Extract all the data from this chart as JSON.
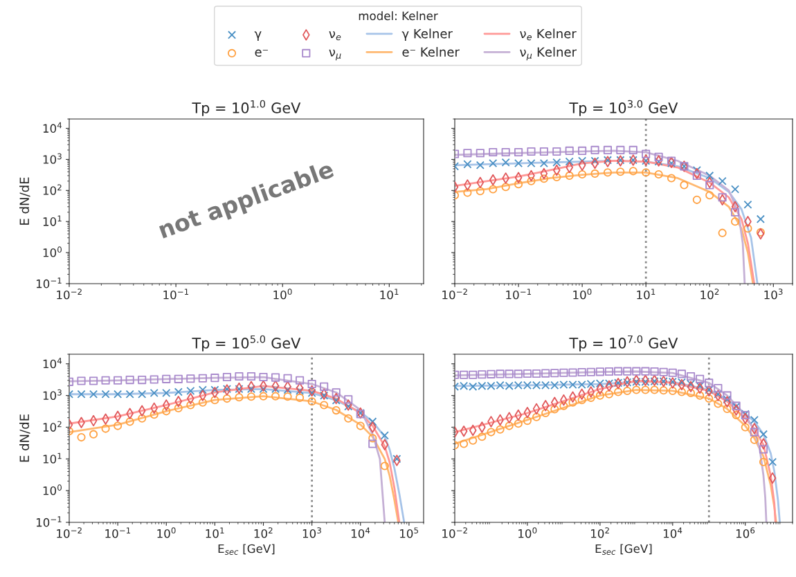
{
  "chart_data": [
    {
      "type": "scatter",
      "title": "Tp = 10$^{1.0}$ GeV",
      "ylabel": "E dN/dE",
      "log": "xy",
      "xlim": [
        0.01,
        21
      ],
      "ylim": [
        0.1,
        20000
      ],
      "xticks": [
        {
          "value": 0.01,
          "label": "10$^{−2}$"
        },
        {
          "value": 0.1,
          "label": "10$^{−1}$"
        },
        {
          "value": 1,
          "label": "10$^{0}$"
        },
        {
          "value": 10,
          "label": "10$^{1}$"
        }
      ],
      "yticks": [
        {
          "value": 0.1,
          "label": "10$^{−1}$"
        },
        {
          "value": 1,
          "label": "10$^{0}$"
        },
        {
          "value": 10,
          "label": "10$^{1}$"
        },
        {
          "value": 100,
          "label": "10$^{2}$"
        },
        {
          "value": 1000,
          "label": "10$^{3}$"
        },
        {
          "value": 10000,
          "label": "10$^{4}$"
        }
      ],
      "annotations": [
        "not applicable"
      ]
    },
    {
      "type": "scatter",
      "title": "Tp = 10$^{3.0}$ GeV",
      "log": "xy",
      "xlim": [
        0.01,
        2000
      ],
      "ylim": [
        0.1,
        20000
      ],
      "tick_labels": "x",
      "legend": "top",
      "legend_title": "model: Kelner",
      "xticks": [
        {
          "value": 0.01,
          "label": "10$^{−2}$"
        },
        {
          "value": 0.1,
          "label": "10$^{−1}$"
        },
        {
          "value": 1,
          "label": "10$^{0}$"
        },
        {
          "value": 10,
          "label": "10$^{1}$"
        },
        {
          "value": 100,
          "label": "10$^{2}$"
        },
        {
          "value": 1000,
          "label": "10$^{3}$"
        }
      ],
      "yticks": [
        {
          "value": 0.1,
          "label": null
        },
        {
          "value": 1,
          "label": null
        },
        {
          "value": 10,
          "label": null
        },
        {
          "value": 100,
          "label": null
        },
        {
          "value": 1000,
          "label": null
        },
        {
          "value": 10000,
          "label": null
        }
      ],
      "ref_lines": [
        {
          "axis": "x",
          "value": 10,
          "color": "#888888",
          "line_style": "dotted"
        }
      ],
      "x": [
        0.01,
        0.01585,
        0.02512,
        0.03981,
        0.0631,
        0.1,
        0.1585,
        0.2512,
        0.3981,
        0.631,
        1,
        1.585,
        2.512,
        3.981,
        6.31,
        10,
        15.85,
        25.12,
        39.81,
        63.1,
        100,
        158.5,
        251.2,
        398.1,
        631
      ],
      "series": [
        {
          "name": "γ",
          "marker": "cross",
          "color": "#4a90c4",
          "values": [
            600,
            700,
            650,
            750,
            800,
            750,
            750,
            750,
            800,
            850,
            900,
            900,
            950,
            950,
            950,
            900,
            850,
            750,
            600,
            450,
            300,
            200,
            110,
            35,
            12
          ]
        },
        {
          "name": "e⁻",
          "marker": "circle",
          "color": "#ffa040",
          "values": [
            70,
            85,
            95,
            110,
            130,
            160,
            200,
            240,
            270,
            300,
            330,
            350,
            380,
            400,
            420,
            380,
            330,
            250,
            150,
            50,
            70,
            4.3,
            10,
            6,
            4.5
          ]
        },
        {
          "name": "ν$_{e}$",
          "marker": "diamond",
          "color": "#e0575a",
          "values": [
            130,
            150,
            180,
            220,
            250,
            260,
            300,
            350,
            450,
            550,
            650,
            750,
            850,
            900,
            950,
            950,
            900,
            800,
            600,
            350,
            180,
            50,
            30,
            10,
            4
          ]
        },
        {
          "name": "ν$_{μ}$",
          "marker": "square",
          "color": "#a889cc",
          "values": [
            1500,
            1600,
            1600,
            1700,
            1700,
            1700,
            1800,
            1800,
            1800,
            1900,
            1900,
            2000,
            2000,
            2000,
            2000,
            1500,
            1200,
            900,
            600,
            300,
            150,
            60,
            20,
            null,
            null
          ]
        },
        {
          "name": "γ Kelner",
          "type": "line",
          "color": "#a6c3e8",
          "x": [
            0.01,
            0.0316,
            0.1,
            0.316,
            1,
            3.16,
            10,
            31.6,
            100,
            200,
            316,
            447,
            562
          ],
          "values": [
            650,
            700,
            750,
            800,
            850,
            900,
            850,
            600,
            250,
            90,
            25,
            3,
            0.1
          ]
        },
        {
          "name": "e⁻ Kelner",
          "type": "line",
          "color": "#ffb870",
          "x": [
            0.01,
            0.0316,
            0.1,
            0.316,
            1,
            3.16,
            10,
            31.6,
            100,
            200,
            316,
            398,
            479
          ],
          "values": [
            90,
            110,
            170,
            250,
            320,
            380,
            380,
            250,
            90,
            30,
            6,
            1,
            0.1
          ]
        },
        {
          "name": "ν$_{e}$ Kelner",
          "type": "line",
          "color": "#ff9896",
          "x": [
            0.01,
            0.0316,
            0.1,
            0.316,
            1,
            3.16,
            10,
            31.6,
            100,
            200,
            316,
            398,
            501
          ],
          "values": [
            140,
            200,
            280,
            450,
            750,
            900,
            850,
            550,
            180,
            60,
            12,
            2,
            0.1
          ]
        },
        {
          "name": "ν$_{μ}$ Kelner",
          "type": "line",
          "color": "#c5b0d5",
          "x": [
            0.01,
            0.0316,
            0.1,
            0.316,
            1,
            3.16,
            10,
            31.6,
            100,
            200,
            282,
            331,
            355
          ],
          "values": [
            1400,
            1500,
            1600,
            1700,
            1800,
            1900,
            1700,
            900,
            300,
            100,
            20,
            2,
            0.1
          ]
        }
      ]
    },
    {
      "type": "scatter",
      "title": "Tp = 10$^{5.0}$ GeV",
      "xlabel": "E$_{sec}$ [GeV]",
      "ylabel": "E dN/dE",
      "log": "xy",
      "xlim": [
        0.01,
        200000
      ],
      "ylim": [
        0.1,
        20000
      ],
      "xticks": [
        {
          "value": 0.01,
          "label": "10$^{−2}$"
        },
        {
          "value": 0.1,
          "label": "10$^{−1}$"
        },
        {
          "value": 1,
          "label": "10$^{0}$"
        },
        {
          "value": 10,
          "label": "10$^{1}$"
        },
        {
          "value": 100,
          "label": "10$^{2}$"
        },
        {
          "value": 1000,
          "label": "10$^{3}$"
        },
        {
          "value": 10000,
          "label": "10$^{4}$"
        },
        {
          "value": 100000,
          "label": "10$^{5}$"
        }
      ],
      "yticks": [
        {
          "value": 0.1,
          "label": "10$^{−1}$"
        },
        {
          "value": 1,
          "label": "10$^{0}$"
        },
        {
          "value": 10,
          "label": "10$^{1}$"
        },
        {
          "value": 100,
          "label": "10$^{2}$"
        },
        {
          "value": 1000,
          "label": "10$^{3}$"
        },
        {
          "value": 10000,
          "label": "10$^{4}$"
        }
      ],
      "ref_lines": [
        {
          "axis": "x",
          "value": 1000,
          "color": "#888888",
          "line_style": "dotted"
        }
      ],
      "x": [
        0.01,
        0.01778,
        0.03162,
        0.05623,
        0.1,
        0.1778,
        0.3162,
        0.5623,
        1,
        1.778,
        3.162,
        5.623,
        10,
        17.78,
        31.62,
        56.23,
        100,
        177.8,
        316.2,
        562.3,
        1000,
        1778,
        3162,
        5623,
        10000,
        17780,
        31620,
        56230
      ],
      "series": [
        {
          "marker": "cross",
          "color": "#4a90c4",
          "values": [
            1100,
            1100,
            1100,
            1100,
            1100,
            1100,
            1100,
            1200,
            1200,
            1300,
            1400,
            1500,
            1500,
            1600,
            1600,
            1600,
            1600,
            1600,
            1500,
            1400,
            1200,
            1000,
            700,
            450,
            280,
            150,
            55,
            10
          ]
        },
        {
          "marker": "circle",
          "color": "#ffa040",
          "values": [
            75,
            48,
            60,
            90,
            110,
            150,
            190,
            250,
            320,
            400,
            500,
            600,
            720,
            800,
            880,
            920,
            950,
            950,
            920,
            850,
            650,
            500,
            340,
            190,
            110,
            45,
            6,
            null
          ]
        },
        {
          "marker": "diamond",
          "color": "#e0575a",
          "values": [
            120,
            140,
            160,
            180,
            220,
            270,
            330,
            400,
            500,
            650,
            800,
            1000,
            1250,
            1500,
            1700,
            1900,
            2000,
            2000,
            1900,
            1700,
            1400,
            1100,
            800,
            500,
            280,
            100,
            28,
            9
          ]
        },
        {
          "marker": "square",
          "color": "#a889cc",
          "values": [
            2700,
            2900,
            2900,
            3000,
            3000,
            3100,
            3100,
            3200,
            3300,
            3300,
            3400,
            3500,
            3600,
            3800,
            4000,
            4000,
            3800,
            3700,
            3500,
            3000,
            2300,
            1900,
            1250,
            750,
            260,
            30,
            null,
            null
          ]
        },
        {
          "type": "line",
          "color": "#a6c3e8",
          "x": [
            0.01,
            0.1,
            1,
            10,
            100,
            1000,
            3162,
            10000,
            17780,
            31620,
            39810,
            50120,
            63100,
            79430
          ],
          "values": [
            1100,
            1100,
            1200,
            1500,
            1600,
            1200,
            700,
            300,
            150,
            50,
            20,
            5,
            0.8,
            0.1
          ]
        },
        {
          "type": "line",
          "color": "#ffb870",
          "x": [
            0.01,
            0.1,
            1,
            10,
            100,
            1000,
            3162,
            10000,
            17780,
            31620,
            39810,
            50120,
            60260
          ],
          "values": [
            70,
            120,
            320,
            720,
            950,
            650,
            350,
            120,
            50,
            10,
            3,
            0.5,
            0.1
          ]
        },
        {
          "type": "line",
          "color": "#ff9896",
          "x": [
            0.01,
            0.1,
            1,
            10,
            100,
            1000,
            3162,
            10000,
            17780,
            31620,
            39810,
            50120,
            63100
          ],
          "values": [
            130,
            220,
            500,
            1250,
            2000,
            1400,
            800,
            280,
            110,
            25,
            8,
            1.2,
            0.1
          ]
        },
        {
          "type": "line",
          "color": "#c5b0d5",
          "x": [
            0.01,
            0.1,
            1,
            10,
            100,
            1000,
            3162,
            10000,
            17780,
            25120,
            28180,
            31620
          ],
          "values": [
            2800,
            3000,
            3300,
            3600,
            3800,
            2300,
            1250,
            350,
            60,
            10,
            1,
            0.1
          ]
        }
      ]
    },
    {
      "type": "scatter",
      "title": "Tp = 10$^{7.0}$ GeV",
      "xlabel": "E$_{sec}$ [GeV]",
      "log": "xy",
      "xlim": [
        0.01,
        20000000
      ],
      "ylim": [
        0.1,
        20000
      ],
      "tick_labels": "x",
      "xticks": [
        {
          "value": 0.01,
          "label": "10$^{−2}$"
        },
        {
          "value": 1,
          "label": "10$^{0}$"
        },
        {
          "value": 100,
          "label": "10$^{2}$"
        },
        {
          "value": 10000,
          "label": "10$^{4}$"
        },
        {
          "value": 1000000,
          "label": "10$^{6}$"
        }
      ],
      "yticks": [
        {
          "value": 0.1,
          "label": null
        },
        {
          "value": 1,
          "label": null
        },
        {
          "value": 10,
          "label": null
        },
        {
          "value": 100,
          "label": null
        },
        {
          "value": 1000,
          "label": null
        },
        {
          "value": 10000,
          "label": null
        }
      ],
      "ref_lines": [
        {
          "axis": "x",
          "value": 100000,
          "color": "#888888",
          "line_style": "dotted"
        }
      ],
      "x": [
        0.01,
        0.01778,
        0.03162,
        0.05623,
        0.1,
        0.1778,
        0.3162,
        0.5623,
        1,
        1.778,
        3.162,
        5.623,
        10,
        17.78,
        31.62,
        56.23,
        100,
        177.8,
        316.2,
        562.3,
        1000,
        1778,
        3162,
        5623,
        10000,
        17780,
        31620,
        56230,
        100000,
        177800,
        316200,
        562300,
        1000000,
        1778000,
        3162000,
        5623000
      ],
      "series": [
        {
          "marker": "cross",
          "color": "#4a90c4",
          "values": [
            1900,
            2000,
            1900,
            2000,
            2000,
            2100,
            2000,
            2100,
            2100,
            2100,
            2100,
            2100,
            2200,
            2200,
            2200,
            2300,
            2400,
            2400,
            2500,
            2600,
            2700,
            2700,
            2800,
            2800,
            2700,
            2600,
            2300,
            2000,
            1500,
            1100,
            750,
            450,
            260,
            170,
            60,
            8
          ]
        },
        {
          "marker": "circle",
          "color": "#ffa040",
          "values": [
            27,
            30,
            38,
            50,
            70,
            85,
            110,
            130,
            160,
            210,
            280,
            370,
            470,
            600,
            720,
            850,
            1000,
            1100,
            1300,
            1400,
            1500,
            1500,
            1500,
            1450,
            1400,
            1300,
            1200,
            1000,
            800,
            550,
            380,
            240,
            100,
            40,
            8,
            null
          ]
        },
        {
          "marker": "diamond",
          "color": "#e0575a",
          "values": [
            70,
            75,
            80,
            100,
            150,
            170,
            200,
            240,
            290,
            380,
            480,
            600,
            720,
            900,
            1100,
            1300,
            1600,
            2000,
            2400,
            2700,
            3000,
            3000,
            3000,
            2800,
            2500,
            2200,
            1900,
            1700,
            1400,
            1000,
            630,
            350,
            190,
            90,
            30,
            2.5
          ]
        },
        {
          "marker": "square",
          "color": "#a889cc",
          "values": [
            4500,
            4500,
            4500,
            4600,
            4700,
            4800,
            4800,
            4800,
            4900,
            4900,
            5000,
            5100,
            5200,
            5300,
            5400,
            5500,
            5600,
            5700,
            5800,
            5800,
            5800,
            5800,
            5700,
            5500,
            5200,
            4800,
            4000,
            3300,
            2500,
            1700,
            1000,
            470,
            240,
            70,
            20,
            null
          ]
        },
        {
          "type": "line",
          "color": "#a6c3e8",
          "x": [
            0.01,
            1,
            100,
            1000,
            10000,
            100000,
            316200,
            1000000,
            1778000,
            3162000,
            5012000,
            6310000,
            7943000,
            8913000
          ],
          "values": [
            2000,
            2100,
            2300,
            2700,
            2700,
            1500,
            750,
            270,
            150,
            60,
            15,
            4,
            0.5,
            0.1
          ]
        },
        {
          "type": "line",
          "color": "#ffb870",
          "x": [
            0.01,
            1,
            100,
            1000,
            10000,
            100000,
            316200,
            1000000,
            1778000,
            3162000,
            5012000,
            6310000,
            7079000
          ],
          "values": [
            30,
            170,
            1000,
            1500,
            1400,
            800,
            380,
            110,
            45,
            12,
            1.5,
            0.3,
            0.1
          ]
        },
        {
          "type": "line",
          "color": "#ff9896",
          "x": [
            0.01,
            1,
            100,
            1000,
            10000,
            100000,
            316200,
            1000000,
            1778000,
            3162000,
            5012000,
            6310000,
            6761000
          ],
          "values": [
            70,
            280,
            1600,
            2900,
            2500,
            1400,
            650,
            190,
            90,
            28,
            3,
            0.4,
            0.1
          ]
        },
        {
          "type": "line",
          "color": "#c5b0d5",
          "x": [
            0.01,
            1,
            100,
            1000,
            10000,
            100000,
            316200,
            1000000,
            1778000,
            2512000,
            3162000,
            3548000,
            3802000
          ],
          "values": [
            4300,
            4800,
            5500,
            5700,
            5100,
            2500,
            1000,
            240,
            80,
            20,
            3,
            0.6,
            0.1
          ]
        }
      ]
    }
  ]
}
